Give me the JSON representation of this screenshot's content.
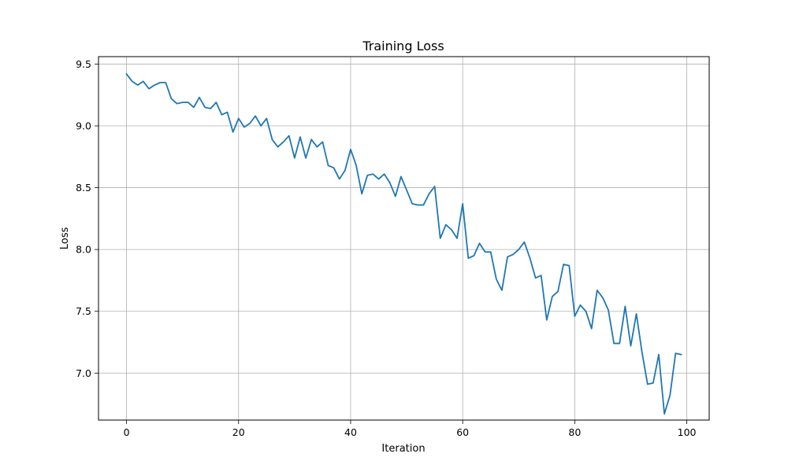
{
  "chart_data": {
    "type": "line",
    "title": "Training Loss",
    "xlabel": "Iteration",
    "ylabel": "Loss",
    "xlim": [
      -5,
      104
    ],
    "ylim": [
      6.62,
      9.56
    ],
    "xticks": [
      0,
      20,
      40,
      60,
      80,
      100
    ],
    "xtick_labels": [
      "0",
      "20",
      "40",
      "60",
      "80",
      "100"
    ],
    "yticks": [
      7.0,
      7.5,
      8.0,
      8.5,
      9.0,
      9.5
    ],
    "ytick_labels": [
      "7.0",
      "7.5",
      "8.0",
      "8.5",
      "9.0",
      "9.5"
    ],
    "grid": true,
    "line_color": "#1f77b4",
    "series": [
      {
        "x": [
          0,
          1,
          2,
          3,
          4,
          5,
          6,
          7,
          8,
          9,
          10,
          11,
          12,
          13,
          14,
          15,
          16,
          17,
          18,
          19,
          20,
          21,
          22,
          23,
          24,
          25,
          26,
          27,
          28,
          29,
          30,
          31,
          32,
          33,
          34,
          35,
          36,
          37,
          38,
          39,
          40,
          41,
          42,
          43,
          44,
          45,
          46,
          47,
          48,
          49,
          50,
          51,
          52,
          53,
          54,
          55,
          56,
          57,
          58,
          59,
          60,
          61,
          62,
          63,
          64,
          65,
          66,
          67,
          68,
          69,
          70,
          71,
          72,
          73,
          74,
          75,
          76,
          77,
          78,
          79,
          80,
          81,
          82,
          83,
          84,
          85,
          86,
          87,
          88,
          89,
          90,
          91,
          92,
          93,
          94,
          95,
          96,
          97,
          98,
          99
        ],
        "values": [
          9.42,
          9.36,
          9.33,
          9.36,
          9.3,
          9.33,
          9.35,
          9.35,
          9.22,
          9.18,
          9.19,
          9.19,
          9.15,
          9.23,
          9.15,
          9.14,
          9.19,
          9.09,
          9.11,
          8.95,
          9.06,
          8.99,
          9.02,
          9.08,
          9.0,
          9.06,
          8.89,
          8.83,
          8.87,
          8.92,
          8.74,
          8.91,
          8.74,
          8.89,
          8.83,
          8.87,
          8.68,
          8.66,
          8.57,
          8.64,
          8.81,
          8.68,
          8.45,
          8.6,
          8.61,
          8.57,
          8.61,
          8.54,
          8.43,
          8.59,
          8.48,
          8.37,
          8.36,
          8.36,
          8.45,
          8.51,
          8.09,
          8.2,
          8.16,
          8.09,
          8.37,
          7.93,
          7.95,
          8.05,
          7.98,
          7.98,
          7.76,
          7.67,
          7.94,
          7.96,
          8.0,
          8.06,
          7.93,
          7.77,
          7.79,
          7.43,
          7.62,
          7.66,
          7.88,
          7.87,
          7.46,
          7.55,
          7.5,
          7.36,
          7.67,
          7.61,
          7.51,
          7.24,
          7.24,
          7.54,
          7.22,
          7.48,
          7.17,
          6.91,
          6.92,
          7.15,
          6.67,
          6.82,
          7.16,
          7.15
        ]
      }
    ]
  }
}
